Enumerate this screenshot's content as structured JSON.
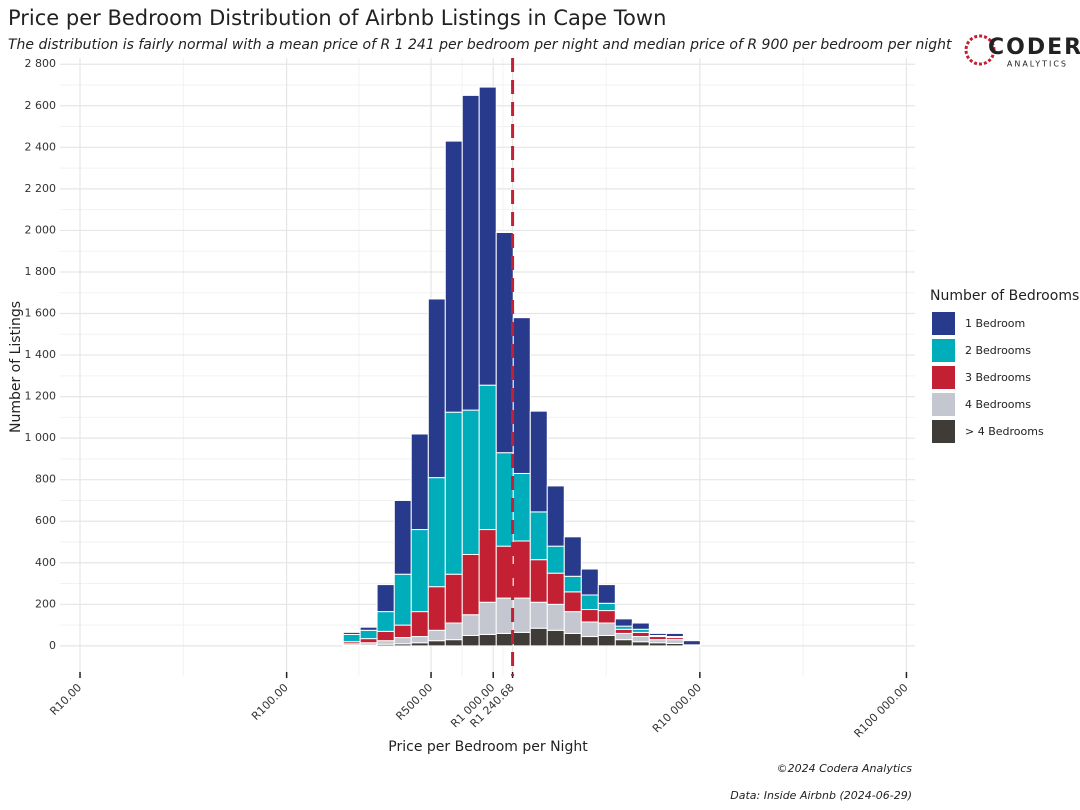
{
  "chart_data": {
    "type": "histogram",
    "title": "Price per Bedroom Distribution of Airbnb Listings in Cape Town",
    "subtitle": "The distribution is fairly normal with a mean price of R 1 241 per bedroom per night and median price of R 900 per bedroom per night",
    "x_label": "Price per Bedroom per Night",
    "y_label": "Number of Listings",
    "legend_title": "Number of Bedrooms",
    "caption": [
      "©2024 Codera Analytics",
      "Data: Inside Airbnb (2024-06-29)"
    ],
    "logo": {
      "name": "CODERA",
      "tagline": "ANALYTICS"
    },
    "x_log": true,
    "grid": true,
    "stacked": true,
    "legend_position": "right",
    "bins": [
      188,
      227,
      274,
      332,
      401,
      485,
      586,
      708,
      855,
      1034,
      1250,
      1511,
      1826,
      2207,
      2669,
      3225,
      3898,
      4711,
      5694,
      6884,
      8321,
      10056
    ],
    "series": [
      {
        "name": "1 Bedroom",
        "color": "#283a8c",
        "values": [
          10,
          15,
          130,
          355,
          460,
          860,
          1305,
          1515,
          1435,
          1060,
          750,
          485,
          290,
          190,
          125,
          90,
          35,
          30,
          10,
          15,
          20
        ]
      },
      {
        "name": "2 Bedrooms",
        "color": "#00adbb",
        "values": [
          35,
          40,
          95,
          245,
          395,
          525,
          780,
          695,
          695,
          450,
          325,
          230,
          130,
          75,
          70,
          35,
          15,
          15,
          5,
          5,
          2
        ]
      },
      {
        "name": "3 Bedrooms",
        "color": "#c42033",
        "values": [
          10,
          20,
          45,
          60,
          120,
          210,
          235,
          290,
          350,
          250,
          275,
          205,
          150,
          95,
          60,
          60,
          20,
          20,
          15,
          10,
          3
        ]
      },
      {
        "name": "4 Bedrooms",
        "color": "#c4c7cf",
        "values": [
          8,
          12,
          17,
          30,
          30,
          50,
          80,
          100,
          155,
          170,
          165,
          125,
          125,
          105,
          70,
          60,
          30,
          25,
          15,
          18,
          0
        ]
      },
      {
        "name": "> 4 Bedrooms",
        "color": "#3f3c37",
        "values": [
          2,
          3,
          8,
          10,
          15,
          25,
          30,
          50,
          55,
          60,
          65,
          85,
          75,
          60,
          45,
          50,
          30,
          20,
          15,
          12,
          0
        ]
      }
    ],
    "mean_line": {
      "value": 1240.68,
      "color": "#c42033"
    },
    "xlim": [
      8,
      110000
    ],
    "xticks": [
      {
        "value": 10,
        "label": "R10.00"
      },
      {
        "value": 100,
        "label": "R100.00"
      },
      {
        "value": 500,
        "label": "R500.00"
      },
      {
        "value": 1000,
        "label": "R1 000.00"
      },
      {
        "value": 1240.68,
        "label": "R1 240.68"
      },
      {
        "value": 10000,
        "label": "R10 000.00"
      },
      {
        "value": 100000,
        "label": "R100 000.00"
      }
    ],
    "ylim": [
      -145,
      2830
    ],
    "yticks": [
      0,
      200,
      400,
      600,
      800,
      {
        "value": 1000,
        "label": "1 000"
      },
      {
        "value": 1200,
        "label": "1 200"
      },
      {
        "value": 1400,
        "label": "1 400"
      },
      {
        "value": 1600,
        "label": "1 600"
      },
      {
        "value": 1800,
        "label": "1 800"
      },
      {
        "value": 2000,
        "label": "2 000"
      },
      {
        "value": 2200,
        "label": "2 200"
      },
      {
        "value": 2400,
        "label": "2 400"
      },
      {
        "value": 2600,
        "label": "2 600"
      },
      {
        "value": 2800,
        "label": "2 800"
      }
    ]
  }
}
